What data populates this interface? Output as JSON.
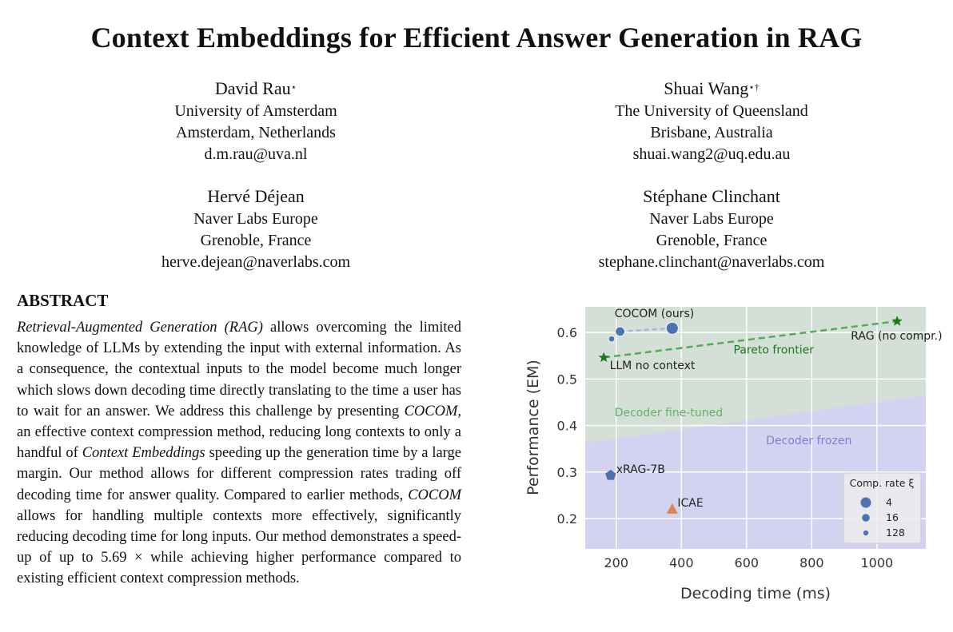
{
  "paper": {
    "title": "Context Embeddings for Efficient Answer Generation in RAG",
    "authors": [
      {
        "name": "David Rau",
        "marks": "⋆",
        "affiliation": "University of Amsterdam",
        "location": "Amsterdam, Netherlands",
        "email": "d.m.rau@uva.nl"
      },
      {
        "name": "Shuai Wang",
        "marks": "⋆†",
        "affiliation": "The University of Queensland",
        "location": "Brisbane, Australia",
        "email": "shuai.wang2@uq.edu.au"
      },
      {
        "name": "Hervé Déjean",
        "marks": "",
        "affiliation": "Naver Labs Europe",
        "location": "Grenoble, France",
        "email": "herve.dejean@naverlabs.com"
      },
      {
        "name": "Stéphane Clinchant",
        "marks": "",
        "affiliation": "Naver Labs Europe",
        "location": "Grenoble, France",
        "email": "stephane.clinchant@naverlabs.com"
      }
    ],
    "abstract_heading": "ABSTRACT",
    "abstract": {
      "rag_term": "Retrieval-Augmented Generation (RAG)",
      "p1": " allows overcoming the limited knowledge of LLMs by extending the input with external information. As a consequence, the contextual inputs to the model become much longer which slows down decoding time directly translating to the time a user has to wait for an answer. We address this challenge by presenting ",
      "cocom1": "COCOM",
      "p2": ", an effective context compression method, reducing long contexts to only a handful of ",
      "ce_term": "Context Embeddings",
      "p3": " speeding up the generation time by a large margin. Our method allows for different compression rates trading off decoding time for answer quality. Compared to earlier methods, ",
      "cocom2": "COCOM",
      "p4": " allows for handling multiple contexts more effectively, significantly reducing decoding time for long inputs. Our method demonstrates a speed-up of up to 5.69 × while achieving higher performance compared to existing efficient context compression methods."
    }
  },
  "chart_data": {
    "type": "scatter",
    "xlabel": "Decoding time (ms)",
    "ylabel": "Performance (EM)",
    "xlim": [
      105,
      1150
    ],
    "ylim": [
      0.135,
      0.655
    ],
    "xticks": [
      200,
      400,
      600,
      800,
      1000
    ],
    "yticks": [
      0.2,
      0.3,
      0.4,
      0.5,
      0.6
    ],
    "grid": true,
    "colors": {
      "plot_bg": "#d4dfd8",
      "frozen_region": "#d3d3f1",
      "pareto": "#55aa55",
      "star": "#1a7a1a",
      "cocom": "#4c72b0",
      "cocom_line": "#a9b7d6",
      "icae": "#dd8452",
      "fine_tuned_text": "#5fb35f",
      "frozen_text": "#7b7fd4"
    },
    "regions": [
      {
        "label": "Decoder fine-tuned",
        "label_x": 195,
        "label_y": 0.42
      },
      {
        "label": "Decoder frozen",
        "label_x": 660,
        "label_y": 0.36,
        "boundary": [
          [
            105,
            0.363
          ],
          [
            1150,
            0.465
          ]
        ]
      }
    ],
    "pareto": {
      "label": "Pareto frontier",
      "label_x": 560,
      "label_y": 0.555,
      "points": [
        [
          162,
          0.546
        ],
        [
          1062,
          0.624
        ]
      ]
    },
    "series": [
      {
        "name": "COCOM (ours)",
        "marker": "circle",
        "label_x": 195,
        "label_y": 0.633,
        "points": [
          {
            "x": 186,
            "y": 0.586,
            "rate": "128"
          },
          {
            "x": 212,
            "y": 0.602,
            "rate": "16"
          },
          {
            "x": 372,
            "y": 0.609,
            "rate": "4"
          }
        ]
      },
      {
        "name": "LLM no context",
        "marker": "star",
        "label_x": 180,
        "label_y": 0.521,
        "points": [
          {
            "x": 162,
            "y": 0.546
          }
        ]
      },
      {
        "name": "RAG (no compr.)",
        "marker": "star",
        "label_x": 920,
        "label_y": 0.585,
        "points": [
          {
            "x": 1062,
            "y": 0.624
          }
        ]
      },
      {
        "name": "xRAG-7B",
        "marker": "pentagon",
        "label_x": 200,
        "label_y": 0.298,
        "points": [
          {
            "x": 183,
            "y": 0.293
          }
        ]
      },
      {
        "name": "ICAE",
        "marker": "triangle",
        "label_x": 388,
        "label_y": 0.226,
        "points": [
          {
            "x": 372,
            "y": 0.221
          }
        ]
      }
    ],
    "legend": {
      "title": "Comp. rate ξ",
      "position": "lower-right",
      "entries": [
        {
          "label": "4",
          "marker_size": "large"
        },
        {
          "label": "16",
          "marker_size": "medium"
        },
        {
          "label": "128",
          "marker_size": "small"
        }
      ]
    }
  }
}
